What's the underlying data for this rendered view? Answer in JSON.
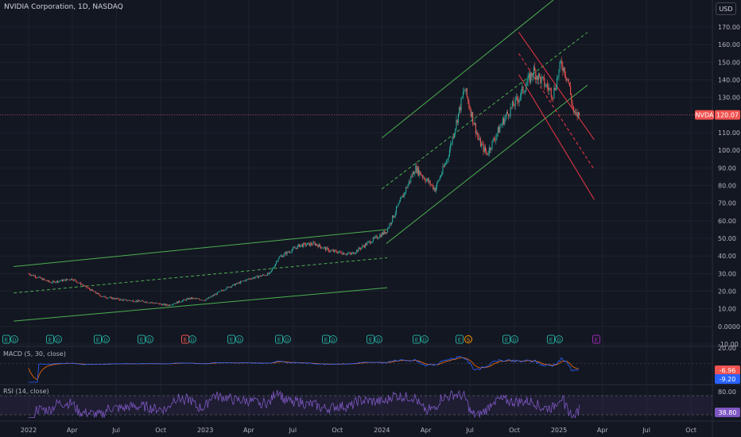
{
  "header": {
    "title": "NVIDIA Corporation, 1D, NASDAQ",
    "currency": "USD"
  },
  "panes": {
    "macd_label": "MACD (5, 30, close)",
    "rsi_label": "RSI (14, close)"
  },
  "price_tag": {
    "symbol": "NVDA",
    "value": "120.07"
  },
  "colors": {
    "background": "#131722",
    "grid": "#1e222d",
    "up": "#26a69a",
    "down": "#ef5350",
    "channel_green": "#4caf50",
    "channel_red": "#f23645",
    "macd": "#2962ff",
    "signal": "#ff6d00",
    "rsi": "#7e57c2"
  },
  "chart_data": [
    {
      "type": "candlestick",
      "x_tick_labels": [
        "2022",
        "Apr",
        "Jul",
        "Oct",
        "2023",
        "Apr",
        "Jul",
        "Oct",
        "2024",
        "Apr",
        "Jul",
        "Oct",
        "2025",
        "Apr",
        "Jul",
        "Oct"
      ],
      "y_tick_labels": [
        "170.00",
        "160.00",
        "150.00",
        "140.00",
        "130.00",
        "120.00",
        "110.00",
        "100.00",
        "90.00",
        "80.00",
        "70.00",
        "60.00",
        "50.00",
        "40.00",
        "30.00",
        "20.00",
        "10.00",
        "0.0000",
        "-10.00"
      ],
      "ylim": [
        -10,
        180
      ],
      "last_price": 120.07,
      "price_path": [
        [
          "2022-01-01",
          30
        ],
        [
          "2022-02-15",
          25
        ],
        [
          "2022-04-01",
          27
        ],
        [
          "2022-06-01",
          17
        ],
        [
          "2022-07-15",
          15
        ],
        [
          "2022-09-01",
          14
        ],
        [
          "2022-10-15",
          12
        ],
        [
          "2022-12-01",
          16
        ],
        [
          "2023-01-01",
          15
        ],
        [
          "2023-02-15",
          22
        ],
        [
          "2023-04-01",
          27
        ],
        [
          "2023-05-15",
          30
        ],
        [
          "2023-06-01",
          39
        ],
        [
          "2023-07-15",
          46
        ],
        [
          "2023-08-15",
          47
        ],
        [
          "2023-09-15",
          43
        ],
        [
          "2023-10-30",
          41
        ],
        [
          "2023-12-01",
          47
        ],
        [
          "2024-01-10",
          54
        ],
        [
          "2024-02-15",
          75
        ],
        [
          "2024-03-10",
          90
        ],
        [
          "2024-04-20",
          78
        ],
        [
          "2024-05-15",
          95
        ],
        [
          "2024-06-20",
          135
        ],
        [
          "2024-07-20",
          105
        ],
        [
          "2024-08-05",
          98
        ],
        [
          "2024-09-10",
          118
        ],
        [
          "2024-10-10",
          130
        ],
        [
          "2024-11-10",
          145
        ],
        [
          "2024-12-01",
          138
        ],
        [
          "2024-12-20",
          132
        ],
        [
          "2025-01-06",
          150
        ],
        [
          "2025-01-20",
          140
        ],
        [
          "2025-02-01",
          120
        ],
        [
          "2025-02-12",
          120.07
        ]
      ],
      "earnings_markers": [
        "E",
        "E",
        "E",
        "E",
        "E",
        "E",
        "E",
        "E",
        "E",
        "E",
        "E",
        "E",
        "E"
      ],
      "dividend_markers": [
        "D",
        "D",
        "D",
        "D",
        "D",
        "D",
        "D",
        "D",
        "D",
        "D",
        "D",
        "D"
      ],
      "split_marker": "S"
    },
    {
      "type": "line",
      "name": "MACD (5, 30, close)",
      "y_tick_labels": [
        "20.00"
      ],
      "values": {
        "macd": "-6.96",
        "signal": "-9.20"
      }
    },
    {
      "type": "line",
      "name": "RSI (14, close)",
      "y_tick_labels": [
        "80.00"
      ],
      "bands": [
        30,
        70
      ],
      "values": {
        "rsi": "38.80"
      }
    }
  ]
}
